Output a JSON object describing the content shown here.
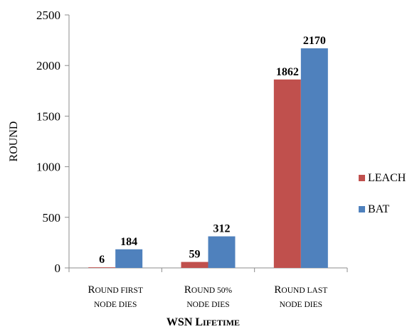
{
  "chart_data": {
    "type": "bar",
    "categories": [
      {
        "lines": [
          {
            "cap": "R",
            "rest": "ound first"
          },
          {
            "cap": "",
            "rest": "node dies"
          }
        ]
      },
      {
        "lines": [
          {
            "cap": "R",
            "rest": "ound 50%"
          },
          {
            "cap": "",
            "rest": "node dies"
          }
        ]
      },
      {
        "lines": [
          {
            "cap": "R",
            "rest": "ound last"
          },
          {
            "cap": "",
            "rest": "node dies"
          }
        ]
      }
    ],
    "series": [
      {
        "name": "LEACH",
        "values": [
          6,
          59,
          1862
        ],
        "color": "#c0504d"
      },
      {
        "name": "BAT",
        "values": [
          184,
          312,
          2170
        ],
        "color": "#4f81bd"
      }
    ],
    "xlabel": {
      "first": "WSN L",
      "small": "ifetime"
    },
    "ylabel": "ROUND",
    "ylim": [
      0,
      2500
    ],
    "yticks": [
      0,
      500,
      1000,
      1500,
      2000,
      2500
    ],
    "legend": "right",
    "grid": false
  }
}
